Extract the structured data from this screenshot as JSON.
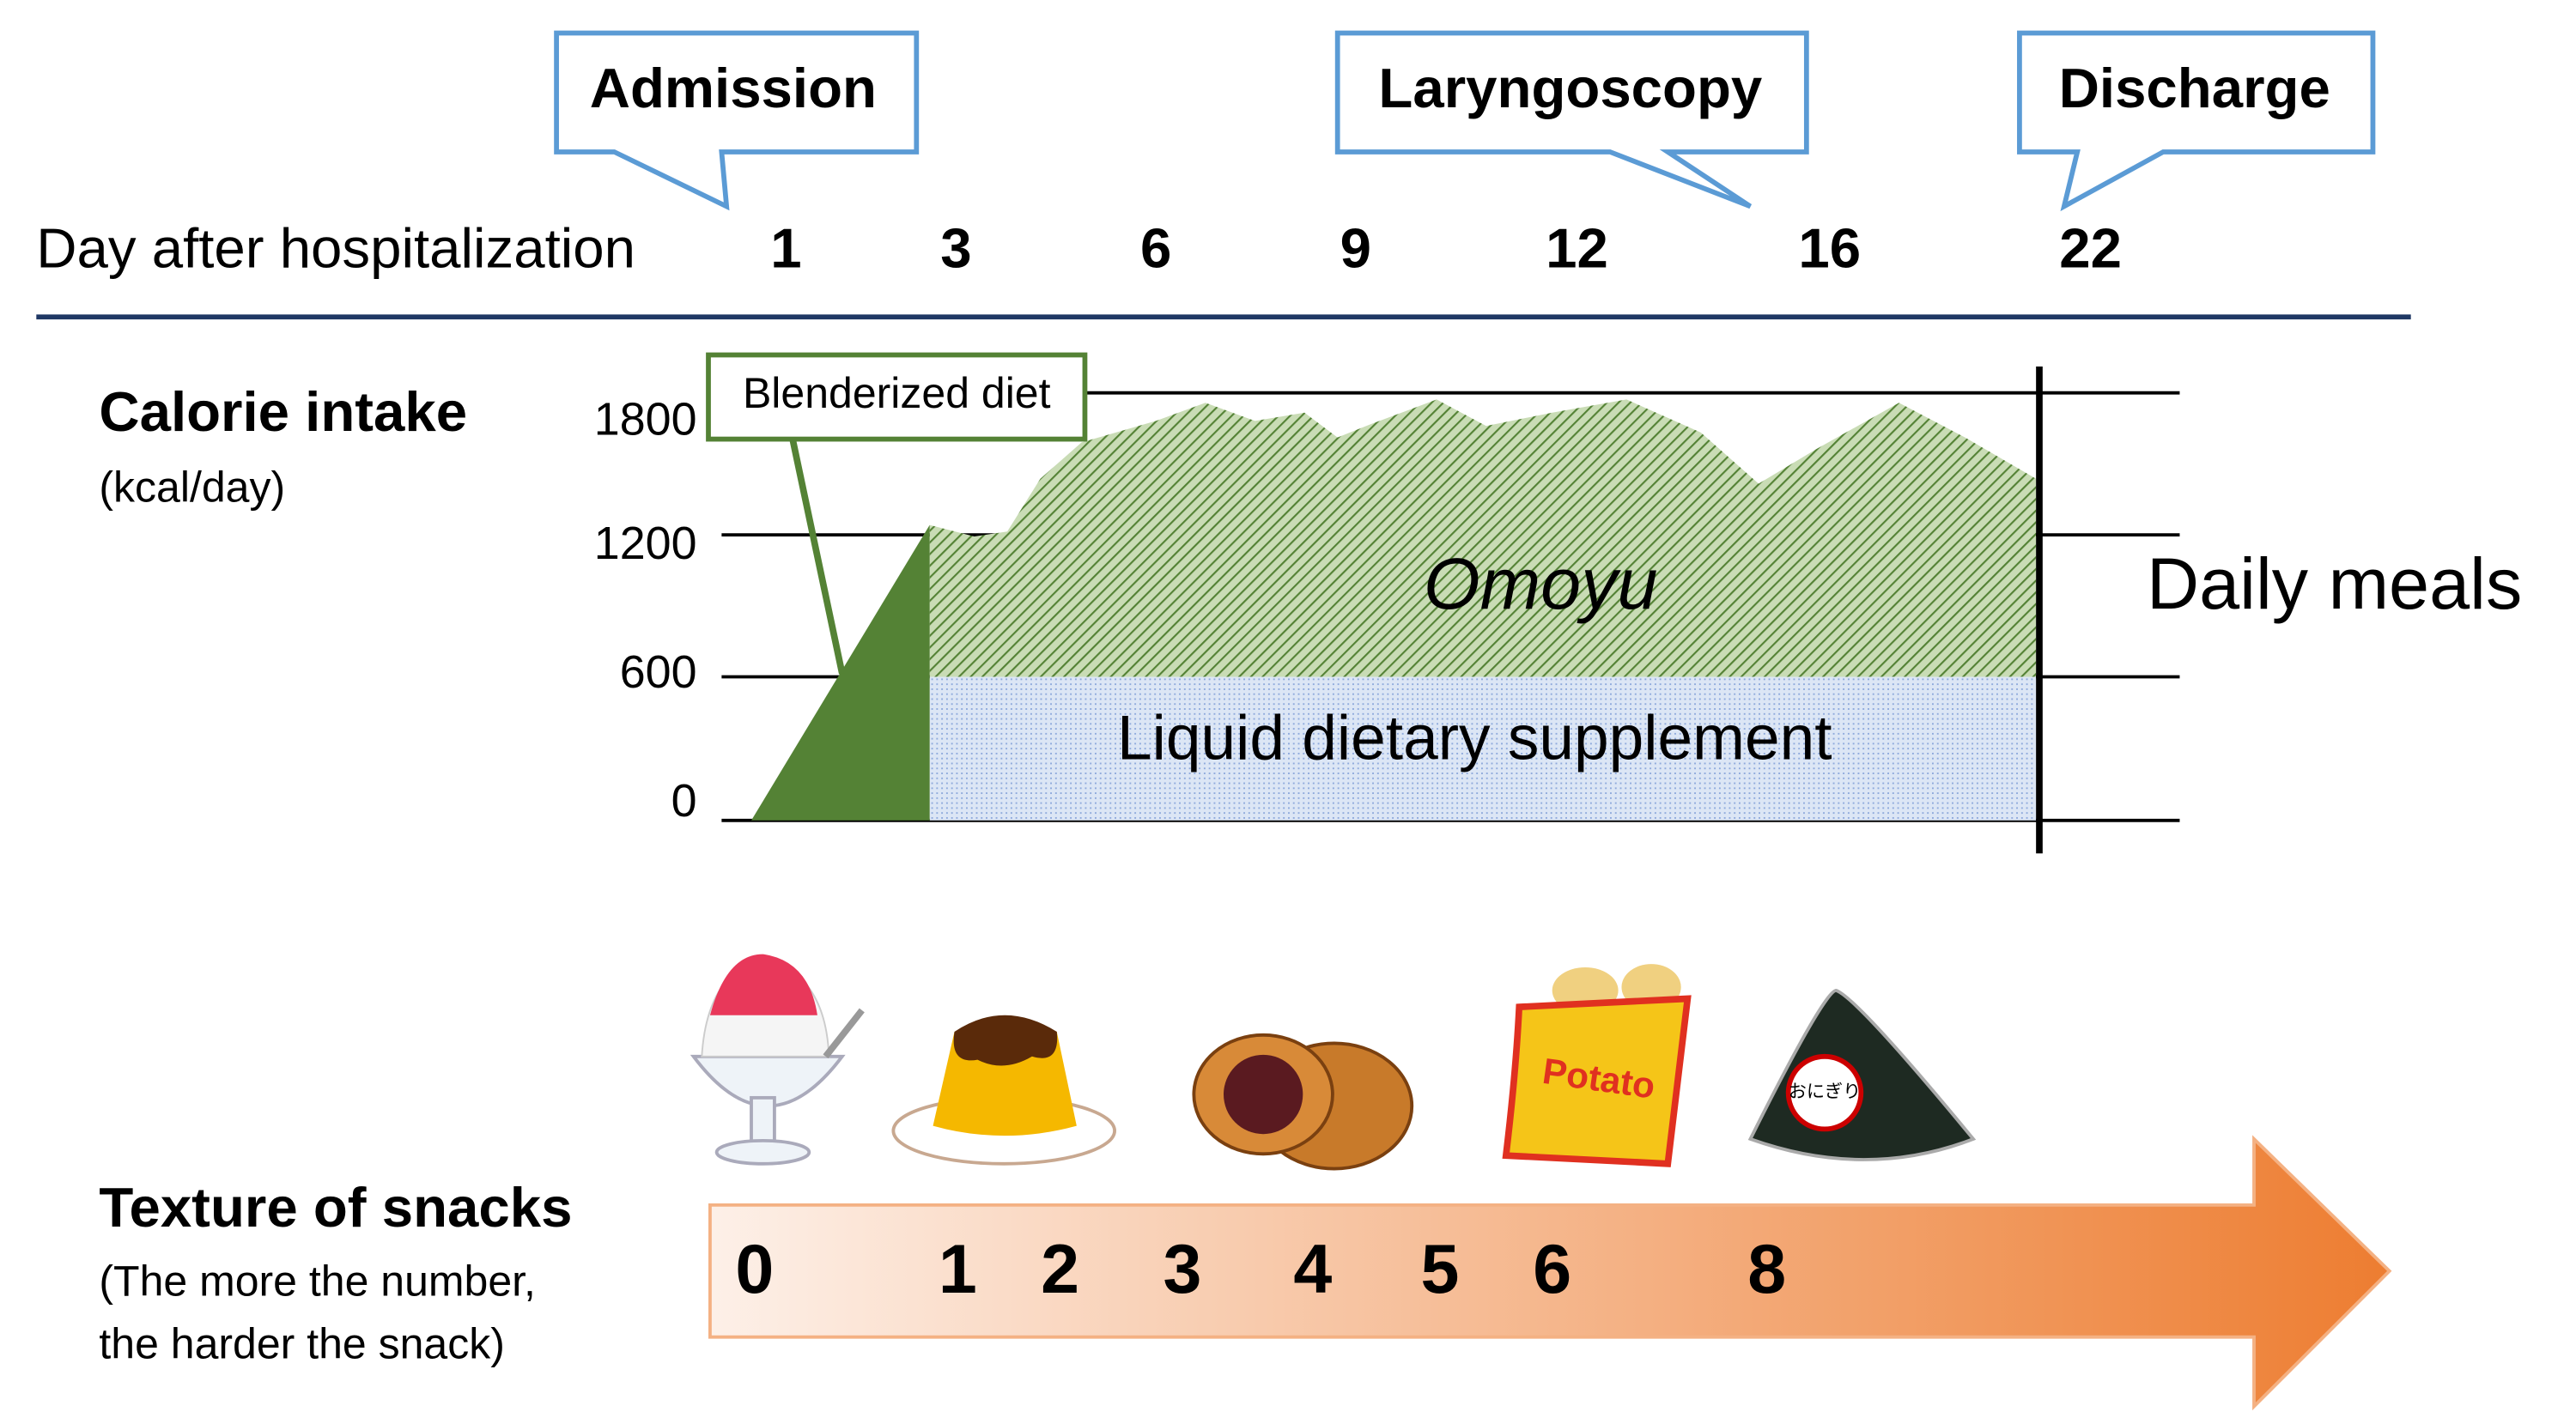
{
  "callouts": [
    "Admission",
    "Laryngoscopy",
    "Discharge"
  ],
  "timeline": {
    "label": "Day after hospitalization",
    "days": [
      "1",
      "3",
      "6",
      "9",
      "12",
      "16",
      "22"
    ]
  },
  "calorie": {
    "title": "Calorie intake",
    "unit": "(kcal/day)",
    "yticks": [
      "1800",
      "1200",
      "600",
      "0"
    ],
    "blenderized": "Blenderized diet",
    "omoyu": "Omoyu",
    "supplement": "Liquid dietary supplement",
    "daily": "Daily meals"
  },
  "snacks": {
    "title": "Texture of snacks",
    "note": [
      "(The more the number,",
      "the harder the snack)"
    ],
    "icons": [
      "Potato",
      "おにぎり"
    ],
    "scale": [
      "0",
      "1",
      "2",
      "3",
      "4",
      "5",
      "6",
      "8"
    ]
  }
}
